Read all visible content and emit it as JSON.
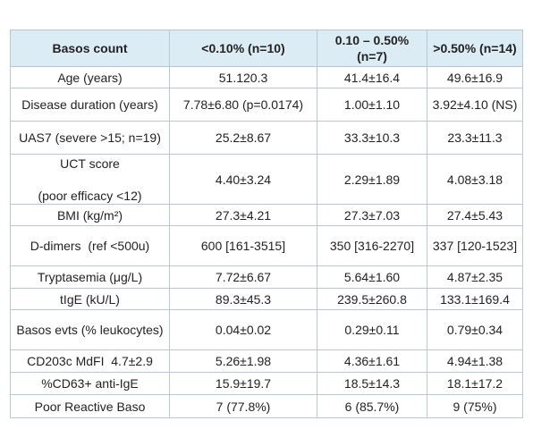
{
  "headers": [
    "Basos count",
    "<0.10% (n=10)",
    "0.10 – 0.50% (n=7)",
    ">0.50% (n=14)"
  ],
  "rows": [
    {
      "label": "Age (years)",
      "values": [
        "51.120.3",
        "41.4±16.4",
        "49.6±16.9"
      ]
    },
    {
      "label": "Disease duration (years)",
      "values": [
        "7.78±6.80 (p=0.0174)",
        "1.00±1.10",
        "3.92±4.10 (NS)"
      ]
    },
    {
      "label": "UAS7 (severe >15; n=19)",
      "values": [
        "25.2±8.67",
        "33.3±10.3",
        "23.3±11.3"
      ]
    },
    {
      "label_a": "UCT score",
      "label_b": "(poor efficacy <12)",
      "values": [
        "4.40±3.24",
        "2.29±1.89",
        "4.08±3.18"
      ]
    },
    {
      "label": "BMI (kg/m²)",
      "values": [
        "27.3±4.21",
        "27.3±7.03",
        "27.4±5.43"
      ]
    },
    {
      "label": "D-dimers  (ref <500u)",
      "values": [
        "600 [161-3515]",
        "350 [316-2270]",
        "337 [120-1523]"
      ]
    },
    {
      "label": "Tryptasemia (μg/L)",
      "values": [
        "7.72±6.67",
        "5.64±1.60",
        "4.87±2.35"
      ]
    },
    {
      "label": "tIgE (kU/L)",
      "values": [
        "89.3±45.3",
        "239.5±260.8",
        "133.1±169.4"
      ]
    },
    {
      "label": "Basos evts (% leukocytes)",
      "values": [
        "0.04±0.02",
        "0.29±0.11",
        "0.79±0.34"
      ]
    },
    {
      "label": "CD203c MdFI  4.7±2.9",
      "values": [
        "5.26±1.98",
        "4.36±1.61",
        "4.94±1.38"
      ]
    },
    {
      "label": "%CD63+ anti-IgE",
      "values": [
        "15.9±19.7",
        "18.5±14.3",
        "18.1±17.2"
      ]
    },
    {
      "label": "Poor Reactive Baso",
      "values": [
        "7 (77.8%)",
        "6 (85.7%)",
        "9 (75%)"
      ]
    }
  ]
}
